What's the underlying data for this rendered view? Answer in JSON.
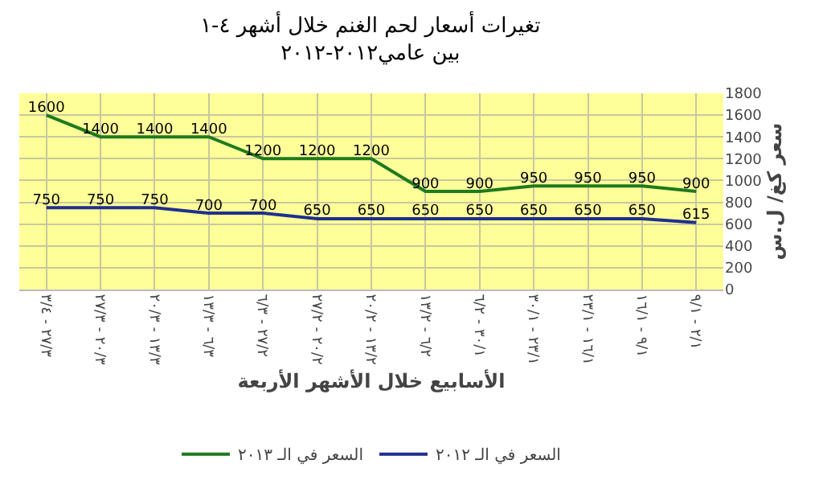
{
  "chart_data": {
    "type": "line",
    "title": "تغيرات أسعار لحم الغنم خلال أشهر ٤-١\nبين عامي٢٠١٢-٢٠١٢",
    "xlabel": "الأسابيع خلال الأشهر الأربعة",
    "ylabel": "سعر كغ/ ل.س",
    "categories": [
      "٢٧/٣ - ٣/٤",
      "٢٠/٣ - ٢٧/٣",
      "١٣/٣ - ٢٠/٣",
      "٦/٣ - ١٣/٣",
      "٢٧/٢ - ٦/٣",
      "٢٠/٢ - ٢٧/٢",
      "١٣/٢ - ٢٠/٢",
      "٦/٢ - ١٣/٢",
      "٣٠/١ - ٦/٢",
      "٢٣/١ - ٣٠/١",
      "١٦/١ - ٢٣/١",
      "٩/١ - ١٦/١",
      "٢/١ - ٩/١"
    ],
    "series": [
      {
        "name": "السعر في الـ ٢٠١٣",
        "color": "#1e7a1e",
        "values": [
          1600,
          1400,
          1400,
          1400,
          1200,
          1200,
          1200,
          900,
          900,
          950,
          950,
          950,
          900
        ]
      },
      {
        "name": "السعر في الـ ٢٠١٢",
        "color": "#1f2f8f",
        "values": [
          750,
          750,
          750,
          700,
          700,
          650,
          650,
          650,
          650,
          650,
          650,
          650,
          615
        ]
      }
    ],
    "ylim": [
      0,
      1800
    ],
    "yticks": [
      0,
      200,
      400,
      600,
      800,
      1000,
      1200,
      1400,
      1600,
      1800
    ],
    "grid": true,
    "legend": "bottom",
    "data_labels": true,
    "marker": "none",
    "line_style": "solid"
  }
}
